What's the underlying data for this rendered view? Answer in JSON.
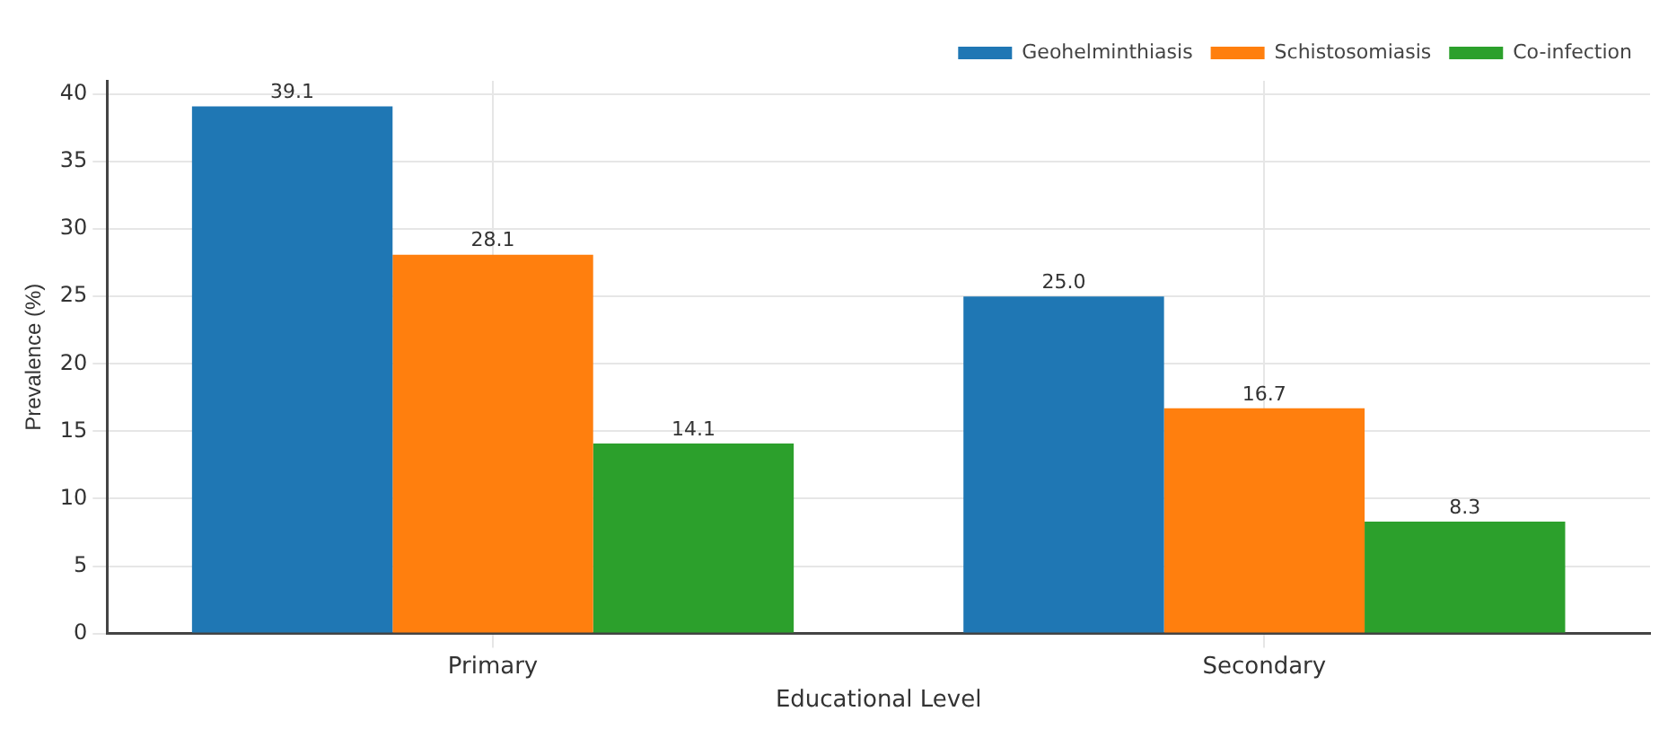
{
  "chart_data": {
    "type": "bar",
    "xlabel": "Educational Level",
    "ylabel": "Prevalence (%)",
    "categories": [
      "Primary",
      "Secondary"
    ],
    "series": [
      {
        "name": "Geohelminthiasis",
        "color": "#1f77b4",
        "values": [
          39.1,
          25.0
        ],
        "value_labels": [
          "39.1",
          "25.0"
        ]
      },
      {
        "name": "Schistosomiasis",
        "color": "#ff7f0e",
        "values": [
          28.1,
          16.7
        ],
        "value_labels": [
          "28.1",
          "16.7"
        ]
      },
      {
        "name": "Co-infection",
        "color": "#2ca02c",
        "values": [
          14.1,
          8.3
        ],
        "value_labels": [
          "14.1",
          "8.3"
        ]
      }
    ],
    "ylim": [
      0,
      41
    ],
    "yticks": [
      0,
      5,
      10,
      15,
      20,
      25,
      30,
      35,
      40
    ],
    "grid": true,
    "legend": "top right"
  }
}
